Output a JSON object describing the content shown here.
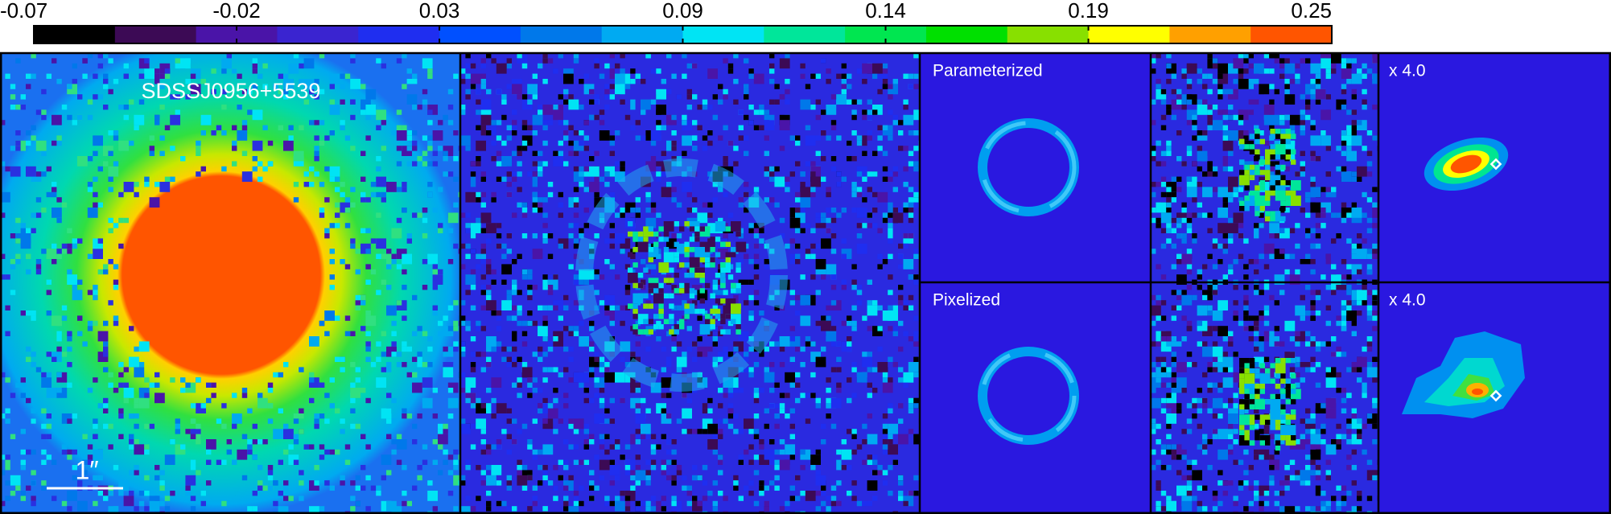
{
  "colorbar": {
    "lim": [
      -0.07,
      0.25
    ],
    "ticks": [
      -0.07,
      -0.02,
      0.03,
      0.09,
      0.14,
      0.19,
      0.25
    ],
    "colors": [
      "#000000",
      "#3c0a55",
      "#4a14a8",
      "#3a24d0",
      "#1f2ef0",
      "#0050ff",
      "#0078ea",
      "#00aaf2",
      "#00e4f4",
      "#00e69a",
      "#00e650",
      "#00e000",
      "#88e000",
      "#ffff00",
      "#ffa000",
      "#ff5500"
    ]
  },
  "panels": {
    "lens_name": "SDSSJ0956+5539",
    "scale_bar": "1″",
    "top_model": "Parameterized",
    "bottom_model": "Pixelized",
    "top_zoom": "x 4.0",
    "bottom_zoom": "x 4.0"
  }
}
